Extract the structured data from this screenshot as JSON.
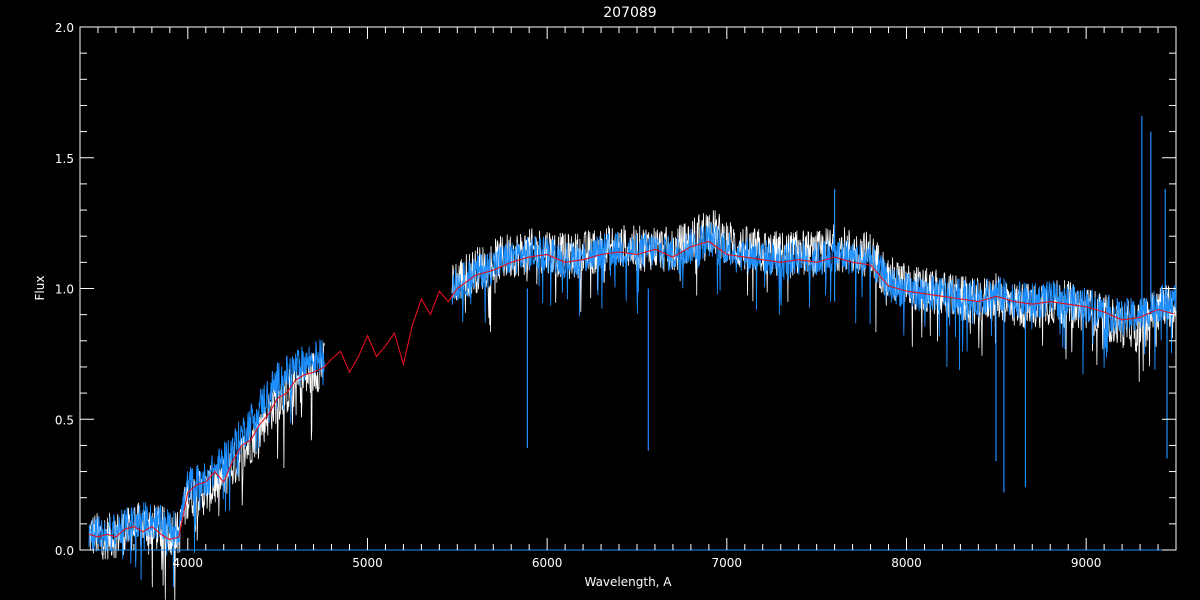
{
  "chart_data": {
    "type": "line",
    "title": "207089",
    "xlabel": "Wavelength, A",
    "ylabel": "Flux",
    "xlim": [
      3400,
      9500
    ],
    "ylim": [
      0,
      2.0
    ],
    "xticks": [
      4000,
      5000,
      6000,
      7000,
      8000,
      9000
    ],
    "xtick_labels": [
      "4000",
      "5000",
      "6000",
      "7000",
      "8000",
      "9000"
    ],
    "yticks": [
      0.0,
      0.5,
      1.0,
      1.5,
      2.0
    ],
    "ytick_labels": [
      "0.0",
      "0.5",
      "1.0",
      "1.5",
      "2.0"
    ],
    "grid": false,
    "background": "#000000",
    "series": [
      {
        "color": "#ffffff",
        "segments": [
          {
            "x": [
              3450,
              3550,
              3650,
              3750,
              3850,
              3950,
              4000,
              4100,
              4200,
              4300,
              4400,
              4500,
              4600,
              4700,
              4760
            ],
            "y": [
              0.06,
              0.05,
              0.07,
              0.1,
              0.08,
              0.06,
              0.21,
              0.22,
              0.28,
              0.36,
              0.47,
              0.58,
              0.63,
              0.68,
              0.71
            ]
          },
          {
            "x": [
              5470,
              5600,
              5700,
              5800,
              5900,
              6000,
              6100,
              6200,
              6300,
              6400,
              6500,
              6600,
              6700,
              6800,
              6900,
              7000,
              7100,
              7200,
              7300,
              7400,
              7500,
              7600,
              7700,
              7800,
              7900,
              8000,
              8100,
              8200,
              8300,
              8400,
              8500,
              8600,
              8700,
              8800,
              8900,
              9000,
              9100,
              9200,
              9300,
              9400,
              9500
            ],
            "y": [
              1.02,
              1.07,
              1.1,
              1.13,
              1.14,
              1.15,
              1.12,
              1.13,
              1.15,
              1.16,
              1.15,
              1.16,
              1.14,
              1.18,
              1.23,
              1.18,
              1.15,
              1.14,
              1.13,
              1.14,
              1.13,
              1.16,
              1.14,
              1.13,
              1.04,
              1.01,
              0.99,
              0.98,
              0.96,
              0.95,
              0.97,
              0.94,
              0.93,
              0.95,
              0.94,
              0.92,
              0.89,
              0.86,
              0.87,
              0.92,
              0.95
            ]
          }
        ]
      },
      {
        "color": "#1e8fff",
        "segments": [
          {
            "x": [
              3450,
              3550,
              3650,
              3750,
              3850,
              3950,
              4000,
              4100,
              4200,
              4300,
              4400,
              4500,
              4600,
              4700,
              4760
            ],
            "y": [
              0.07,
              0.06,
              0.09,
              0.12,
              0.1,
              0.08,
              0.25,
              0.27,
              0.34,
              0.44,
              0.55,
              0.65,
              0.7,
              0.73,
              0.75
            ]
          },
          {
            "x": [
              5470,
              5600,
              5700,
              5800,
              5900,
              6000,
              6100,
              6200,
              6300,
              6400,
              6500,
              6600,
              6700,
              6800,
              6900,
              7000,
              7100,
              7200,
              7300,
              7400,
              7500,
              7600,
              7700,
              7800,
              7900,
              8000,
              8100,
              8200,
              8300,
              8400,
              8500,
              8600,
              8700,
              8800,
              8900,
              9000,
              9100,
              9200,
              9300,
              9400,
              9500
            ],
            "y": [
              1.0,
              1.06,
              1.09,
              1.12,
              1.13,
              1.14,
              1.11,
              1.12,
              1.14,
              1.15,
              1.14,
              1.15,
              1.13,
              1.16,
              1.19,
              1.16,
              1.13,
              1.12,
              1.11,
              1.12,
              1.11,
              1.13,
              1.12,
              1.11,
              1.02,
              0.99,
              0.98,
              0.98,
              0.97,
              0.96,
              0.98,
              0.96,
              0.95,
              0.96,
              0.95,
              0.94,
              0.91,
              0.89,
              0.9,
              0.94,
              0.96
            ]
          },
          {
            "x": [
              3450,
              9500
            ],
            "y": [
              0.0,
              0.0
            ]
          }
        ],
        "spikes": [
          {
            "x": 5890,
            "y": 0.39
          },
          {
            "x": 6563,
            "y": 0.38
          },
          {
            "x": 7600,
            "y": 1.38
          },
          {
            "x": 8498,
            "y": 0.34
          },
          {
            "x": 8542,
            "y": 0.22
          },
          {
            "x": 8662,
            "y": 0.24
          },
          {
            "x": 9310,
            "y": 1.66
          },
          {
            "x": 9360,
            "y": 1.6
          },
          {
            "x": 9440,
            "y": 1.38
          },
          {
            "x": 9450,
            "y": 0.35
          }
        ]
      },
      {
        "color": "#e0101e",
        "x": [
          3450,
          3500,
          3550,
          3600,
          3650,
          3700,
          3750,
          3800,
          3850,
          3900,
          3950,
          4000,
          4050,
          4100,
          4150,
          4200,
          4250,
          4300,
          4350,
          4400,
          4450,
          4500,
          4550,
          4600,
          4650,
          4700,
          4760,
          4800,
          4850,
          4900,
          4950,
          5000,
          5050,
          5100,
          5150,
          5200,
          5250,
          5300,
          5350,
          5400,
          5450,
          5500,
          5600,
          5700,
          5800,
          5900,
          6000,
          6100,
          6200,
          6300,
          6400,
          6500,
          6600,
          6700,
          6800,
          6900,
          7000,
          7100,
          7200,
          7300,
          7400,
          7500,
          7600,
          7700,
          7800,
          7900,
          8000,
          8100,
          8200,
          8300,
          8400,
          8500,
          8600,
          8700,
          8800,
          8900,
          9000,
          9100,
          9200,
          9300,
          9400,
          9500
        ],
        "y": [
          0.06,
          0.05,
          0.06,
          0.05,
          0.08,
          0.09,
          0.07,
          0.09,
          0.06,
          0.04,
          0.05,
          0.22,
          0.25,
          0.26,
          0.3,
          0.26,
          0.34,
          0.4,
          0.42,
          0.48,
          0.52,
          0.58,
          0.6,
          0.65,
          0.67,
          0.68,
          0.7,
          0.73,
          0.76,
          0.68,
          0.74,
          0.82,
          0.74,
          0.78,
          0.83,
          0.71,
          0.86,
          0.96,
          0.9,
          0.99,
          0.95,
          1.0,
          1.05,
          1.07,
          1.1,
          1.12,
          1.13,
          1.1,
          1.11,
          1.13,
          1.14,
          1.13,
          1.15,
          1.12,
          1.16,
          1.18,
          1.13,
          1.12,
          1.11,
          1.1,
          1.11,
          1.1,
          1.12,
          1.1,
          1.09,
          1.01,
          0.99,
          0.98,
          0.97,
          0.96,
          0.95,
          0.97,
          0.95,
          0.94,
          0.95,
          0.94,
          0.93,
          0.91,
          0.88,
          0.89,
          0.92,
          0.9
        ]
      }
    ]
  }
}
